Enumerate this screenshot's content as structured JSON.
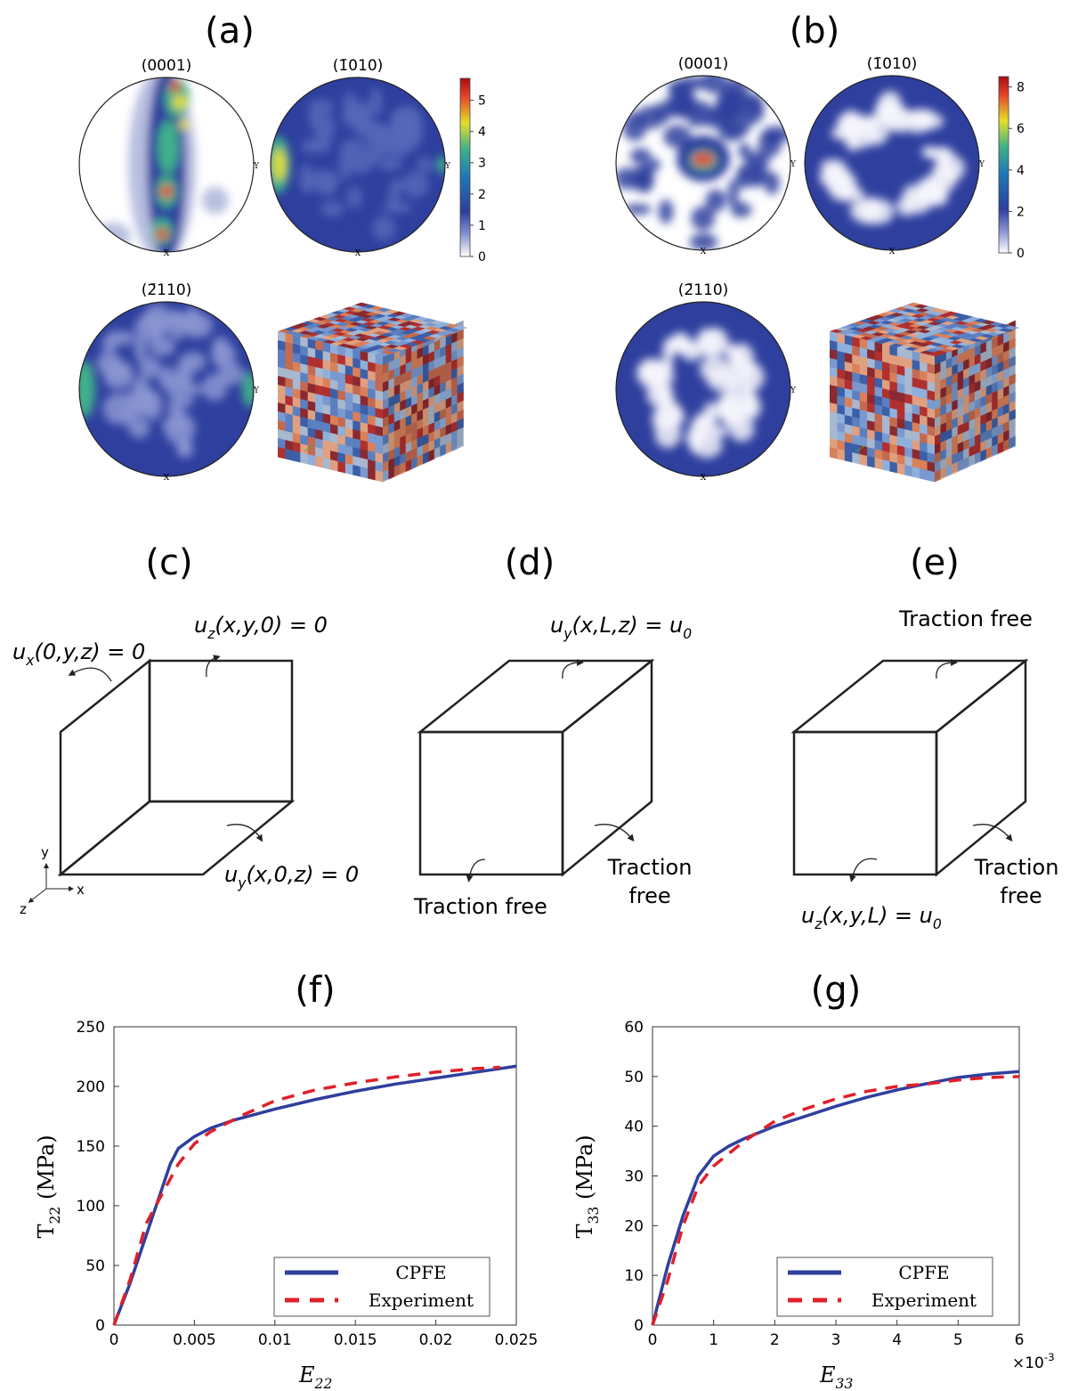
{
  "panels": {
    "a": {
      "label": "(a)",
      "pole_figure_titles": [
        "(0001)",
        "(1̄010)",
        "(2̄110)"
      ],
      "colorbar": {
        "lim": [
          0,
          5.7
        ],
        "ticks": [
          0,
          1,
          2,
          3,
          4,
          5
        ]
      }
    },
    "b": {
      "label": "(b)",
      "pole_figure_titles": [
        "(0001)",
        "(1̄010)",
        "(2̄110)"
      ],
      "colorbar": {
        "lim": [
          0,
          8.5
        ],
        "ticks": [
          0,
          2,
          4,
          6,
          8
        ]
      }
    }
  },
  "axis_letters": {
    "x": "X",
    "y": "Y"
  },
  "diagrams": {
    "c": {
      "label": "(c)",
      "conditions": [
        [
          "u",
          "z",
          "(x,y,0) = 0"
        ],
        [
          "u",
          "x",
          "(0,y,z) = 0"
        ],
        [
          "u",
          "y",
          "(x,0,z) = 0"
        ]
      ],
      "axes": [
        "y",
        "x",
        "z"
      ]
    },
    "d": {
      "label": "(d)",
      "conditions": [
        [
          "u",
          "y",
          "(x,L,z) = u",
          "0"
        ]
      ],
      "traction": [
        "Traction free",
        "Traction",
        "free"
      ]
    },
    "e": {
      "label": "(e)",
      "conditions": [
        [
          "u",
          "z",
          "(x,y,L) = u",
          "0"
        ]
      ],
      "traction": [
        "Traction free",
        "Traction",
        "free"
      ]
    }
  },
  "chart_data": [
    {
      "type": "line",
      "title": "(f)",
      "x_label": [
        "E",
        "22"
      ],
      "y_label": [
        "T",
        "22",
        " (MPa)"
      ],
      "xlim": [
        0,
        0.025
      ],
      "xticks": [
        0,
        0.005,
        0.01,
        0.015,
        0.02,
        0.025
      ],
      "ylim": [
        0,
        250
      ],
      "yticks": [
        0,
        50,
        100,
        150,
        200,
        250
      ],
      "legend": "lower right",
      "series": [
        {
          "name": "CPFE",
          "color": "#2e3f9e",
          "dashed": false,
          "x": [
            0,
            0.001,
            0.002,
            0.003,
            0.0035,
            0.004,
            0.005,
            0.006,
            0.0075,
            0.01,
            0.0125,
            0.015,
            0.0175,
            0.02,
            0.0225,
            0.025
          ],
          "values": [
            0,
            35,
            75,
            115,
            135,
            148,
            158,
            165,
            172,
            181,
            189,
            196,
            202,
            207,
            212,
            217
          ]
        },
        {
          "name": "Experiment",
          "color": "#e0202a",
          "dashed": true,
          "x": [
            0,
            0.001,
            0.002,
            0.003,
            0.004,
            0.005,
            0.006,
            0.008,
            0.01,
            0.0125,
            0.015,
            0.0175,
            0.02,
            0.0225,
            0.024
          ],
          "values": [
            0,
            38,
            85,
            110,
            135,
            152,
            162,
            176,
            188,
            197,
            203,
            208,
            212,
            215,
            216
          ]
        }
      ]
    },
    {
      "type": "line",
      "title": "(g)",
      "x_label": [
        "E",
        "33"
      ],
      "y_label": [
        "T",
        "33",
        " (MPa)"
      ],
      "x_multiplier": [
        "×10",
        "-3"
      ],
      "xlim": [
        0,
        6
      ],
      "xticks": [
        0,
        1,
        2,
        3,
        4,
        5,
        6
      ],
      "ylim": [
        0,
        60
      ],
      "yticks": [
        0,
        10,
        20,
        30,
        40,
        50,
        60
      ],
      "legend": "lower right",
      "series": [
        {
          "name": "CPFE",
          "color": "#2e3f9e",
          "dashed": false,
          "x": [
            0,
            0.25,
            0.5,
            0.75,
            1,
            1.25,
            1.5,
            2,
            2.5,
            3,
            3.5,
            4,
            4.5,
            5,
            5.5,
            6
          ],
          "values": [
            0,
            12,
            22,
            30,
            34,
            36,
            37.5,
            40,
            42,
            44,
            45.8,
            47.3,
            48.6,
            49.8,
            50.5,
            51
          ]
        },
        {
          "name": "Experiment",
          "color": "#e0202a",
          "dashed": true,
          "x": [
            0,
            0.25,
            0.5,
            0.75,
            1,
            1.5,
            2,
            2.5,
            3,
            3.5,
            4,
            4.5,
            5,
            5.5,
            6
          ],
          "values": [
            0,
            9,
            20,
            28,
            32,
            37,
            41,
            43.5,
            45.5,
            47,
            48,
            48.5,
            49.3,
            49.8,
            50
          ]
        }
      ]
    }
  ]
}
